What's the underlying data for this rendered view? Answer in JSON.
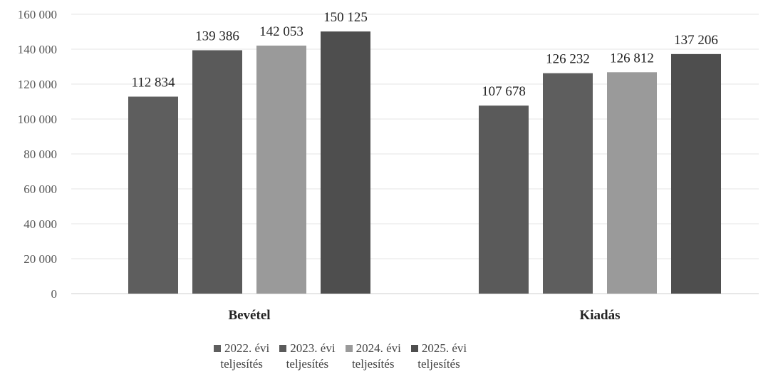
{
  "chart_data": {
    "type": "bar",
    "categories": [
      "Bevétel",
      "Kiadás"
    ],
    "series": [
      {
        "name": "2022. évi teljesítés",
        "legend_line1": "2022. évi",
        "legend_line2": "teljesítés",
        "color": "#5e5e5e",
        "values": [
          112834,
          126232
        ]
      },
      {
        "name": "2023. évi teljesítés",
        "legend_line1": "2023. évi",
        "legend_line2": "teljesítés",
        "color": "#5a5a5a",
        "values": [
          139386,
          107678
        ]
      },
      {
        "name": "2024. évi teljesítés",
        "legend_line1": "2024. évi",
        "legend_line2": "teljesítés",
        "color": "#9a9a9a",
        "values": [
          142053,
          126812
        ]
      },
      {
        "name": "2025. évi teljesítés",
        "legend_line1": "2025. évi",
        "legend_line2": "teljesítés",
        "color": "#4e4e4e",
        "values": [
          150125,
          137206
        ]
      }
    ],
    "bar_order": [
      [
        0,
        1,
        2,
        3
      ],
      [
        1,
        0,
        2,
        3
      ]
    ],
    "data_labels": [
      [
        "112 834",
        "139 386",
        "142 053",
        "150 125"
      ],
      [
        "107 678",
        "126 232",
        "126 812",
        "137 206"
      ]
    ],
    "y_ticks": [
      "0",
      "20 000",
      "40 000",
      "60 000",
      "80 000",
      "100 000",
      "120 000",
      "140 000",
      "160 000"
    ],
    "ylim": [
      0,
      160000
    ],
    "grid": true,
    "legend_position": "bottom",
    "title": "",
    "xlabel": "",
    "ylabel": ""
  }
}
